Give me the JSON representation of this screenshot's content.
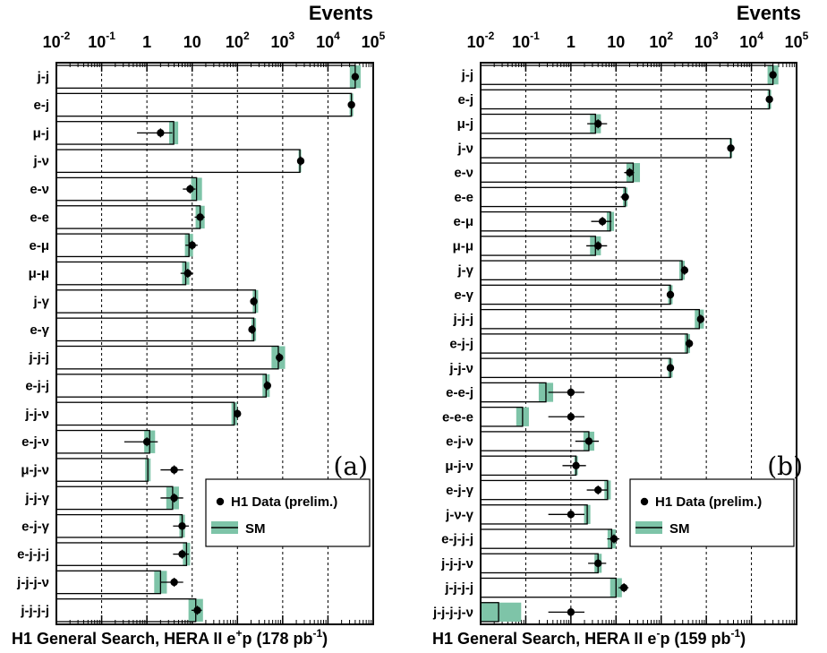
{
  "chart_data": [
    {
      "type": "bar",
      "orientation": "horizontal",
      "xscale": "log",
      "xlim": [
        0.01,
        100000
      ],
      "grid": true,
      "axis_title": "Events",
      "tick_labels": [
        "10",
        "10",
        "1",
        "10",
        "10",
        "10",
        "10",
        "10"
      ],
      "tick_exponents": [
        "-2",
        "-1",
        "",
        "",
        "2",
        "3",
        "4",
        "5"
      ],
      "panel_label": "(a)",
      "caption_parts": [
        "H1 General Search, HERA II e",
        "+",
        "p (178 pb",
        "-1",
        ")"
      ],
      "legend_position": "lower-right",
      "series": [
        {
          "name": "H1 Data (prelim.)",
          "kind": "points"
        },
        {
          "name": "SM",
          "kind": "bar"
        }
      ],
      "categories": [
        "j-j",
        "e-j",
        "μ-j",
        "j-ν",
        "e-ν",
        "e-e",
        "e-μ",
        "μ-μ",
        "j-γ",
        "e-γ",
        "j-j-j",
        "e-j-j",
        "j-j-ν",
        "e-j-ν",
        "μ-j-ν",
        "j-j-γ",
        "e-j-γ",
        "e-j-j-j",
        "j-j-j-ν",
        "j-j-j-j"
      ],
      "sm": [
        40000,
        33000,
        3.9,
        2400,
        12.5,
        15,
        8.5,
        7.2,
        250,
        230,
        800,
        430,
        85,
        1.15,
        1.05,
        3.7,
        6.0,
        7.5,
        2.0,
        12
      ],
      "sm_err": [
        0.12,
        0.04,
        0.1,
        0.03,
        0.12,
        0.1,
        0.09,
        0.08,
        0.06,
        0.05,
        0.15,
        0.08,
        0.06,
        0.12,
        0.06,
        0.14,
        0.06,
        0.08,
        0.14,
        0.16
      ],
      "data": [
        40000,
        33000,
        2,
        2500,
        9,
        15,
        10,
        8,
        230,
        210,
        850,
        460,
        100,
        1,
        4,
        4,
        6,
        6,
        4,
        13
      ],
      "data_err_lo": [
        0.01,
        0.01,
        0.52,
        0.01,
        0.16,
        0.12,
        0.15,
        0.16,
        0.03,
        0.03,
        0.02,
        0.02,
        0.05,
        0.5,
        0.3,
        0.3,
        0.2,
        0.2,
        0.3,
        0.13
      ],
      "data_err_hi": [
        0.01,
        0.01,
        0.26,
        0.01,
        0.12,
        0.1,
        0.12,
        0.12,
        0.03,
        0.03,
        0.02,
        0.02,
        0.04,
        0.24,
        0.2,
        0.2,
        0.15,
        0.15,
        0.2,
        0.1
      ]
    },
    {
      "type": "bar",
      "orientation": "horizontal",
      "xscale": "log",
      "xlim": [
        0.01,
        100000
      ],
      "grid": true,
      "axis_title": "Events",
      "tick_labels": [
        "10",
        "10",
        "1",
        "10",
        "10",
        "10",
        "10",
        "10"
      ],
      "tick_exponents": [
        "-2",
        "-1",
        "",
        "",
        "2",
        "3",
        "4",
        "5"
      ],
      "panel_label": "(b)",
      "caption_parts": [
        "H1 General Search, HERA II e",
        "-",
        "p (159 pb",
        "-1",
        ")"
      ],
      "legend_position": "lower-right",
      "series": [
        {
          "name": "H1 Data (prelim.)",
          "kind": "points"
        },
        {
          "name": "SM",
          "kind": "bar"
        }
      ],
      "categories": [
        "j-j",
        "e-j",
        "μ-j",
        "j-ν",
        "e-ν",
        "e-e",
        "e-μ",
        "μ-μ",
        "j-γ",
        "e-γ",
        "j-j-j",
        "e-j-j",
        "j-j-ν",
        "e-e-j",
        "e-e-e",
        "e-j-ν",
        "μ-j-ν",
        "e-j-γ",
        "j-ν-γ",
        "e-j-j-j",
        "j-j-j-ν",
        "j-j-j-j",
        "j-j-j-j-ν"
      ],
      "sm": [
        30000,
        25000,
        3.5,
        3500,
        24,
        16,
        7.5,
        3.5,
        290,
        160,
        700,
        380,
        160,
        0.28,
        0.085,
        2.5,
        1.3,
        6.5,
        2.3,
        8.0,
        4.0,
        10,
        0.025
      ],
      "sm_err": [
        0.12,
        0.04,
        0.12,
        0.03,
        0.15,
        0.05,
        0.08,
        0.12,
        0.06,
        0.05,
        0.1,
        0.06,
        0.05,
        0.16,
        0.14,
        0.12,
        0.04,
        0.07,
        0.07,
        0.09,
        0.08,
        0.13,
        0.5
      ],
      "data": [
        30000,
        25000,
        4,
        3500,
        20,
        16,
        5,
        4,
        330,
        160,
        750,
        420,
        160,
        1,
        1,
        2.5,
        1.3,
        4,
        1,
        9,
        4,
        15,
        1
      ],
      "data_err_lo": [
        0.01,
        0.01,
        0.24,
        0.01,
        0.12,
        0.1,
        0.25,
        0.26,
        0.03,
        0.04,
        0.02,
        0.02,
        0.04,
        0.5,
        0.5,
        0.3,
        0.3,
        0.25,
        0.5,
        0.15,
        0.22,
        0.12,
        0.5
      ],
      "data_err_hi": [
        0.01,
        0.01,
        0.2,
        0.01,
        0.1,
        0.08,
        0.2,
        0.2,
        0.03,
        0.04,
        0.02,
        0.02,
        0.04,
        0.3,
        0.3,
        0.22,
        0.22,
        0.2,
        0.3,
        0.12,
        0.18,
        0.1,
        0.3
      ]
    }
  ],
  "colors": {
    "sm_band": "#7ec4a8",
    "axis": "#000000",
    "grid": "#000000",
    "background": "#ffffff"
  }
}
